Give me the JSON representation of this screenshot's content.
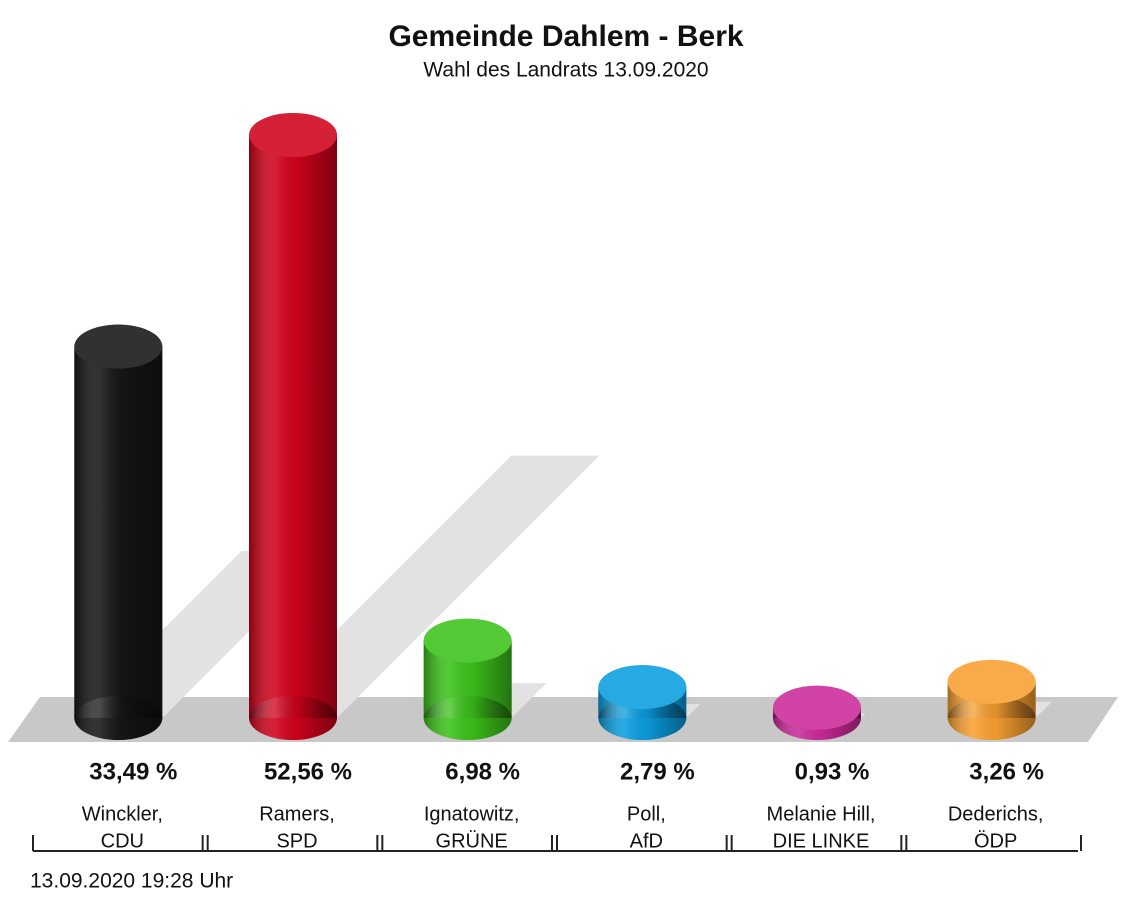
{
  "chart_data": {
    "type": "bar3d",
    "title": "Gemeinde Dahlem - Berk",
    "subtitle": "Wahl des Landrats 13.09.2020",
    "categories": [
      [
        "Winckler,",
        "CDU"
      ],
      [
        "Ramers,",
        "SPD"
      ],
      [
        "Ignatowitz,",
        "GRÜNE"
      ],
      [
        "Poll,",
        "AfD"
      ],
      [
        "Melanie Hill,",
        "DIE LINKE"
      ],
      [
        "Dederichs,",
        "ÖDP"
      ]
    ],
    "values": [
      33.49,
      52.56,
      6.98,
      2.79,
      0.93,
      3.26
    ],
    "value_labels": [
      "33,49 %",
      "52,56 %",
      "6,98 %",
      "2,79 %",
      "0,93 %",
      "3,26 %"
    ],
    "colors": [
      "#151515",
      "#d0021b",
      "#3cc21a",
      "#0a9ee0",
      "#cc2a9a",
      "#f9a030"
    ],
    "footer": "13.09.2020 19:28 Uhr"
  }
}
